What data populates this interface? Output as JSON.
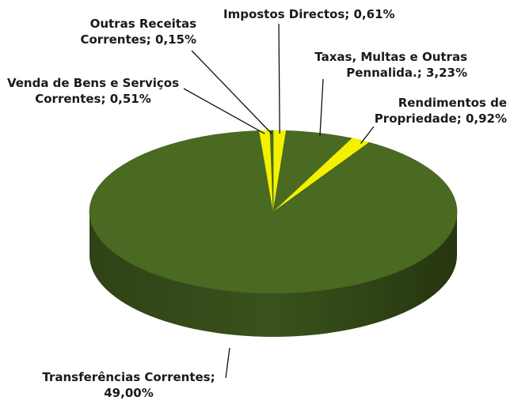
{
  "chart_data": {
    "type": "pie",
    "categories": [
      "Impostos Directos;",
      "Taxas, Multas e Outras Pennalida.;",
      "Rendimentos de Propriedade;",
      "Transferências Correntes;",
      "Venda de Bens e Serviços Correntes;",
      "Outras Receitas Correntes;"
    ],
    "values": [
      0.61,
      3.23,
      0.92,
      49.0,
      0.51,
      0.15
    ],
    "value_labels": [
      "0,61%",
      "3,23%",
      "0,92%",
      "49,00%",
      "0,51%",
      "0,15%"
    ],
    "colors": [
      "#f2f200",
      "#4a6a22",
      "#f2f200",
      "#4a6a22",
      "#f2f200",
      "#4a6a22"
    ]
  }
}
